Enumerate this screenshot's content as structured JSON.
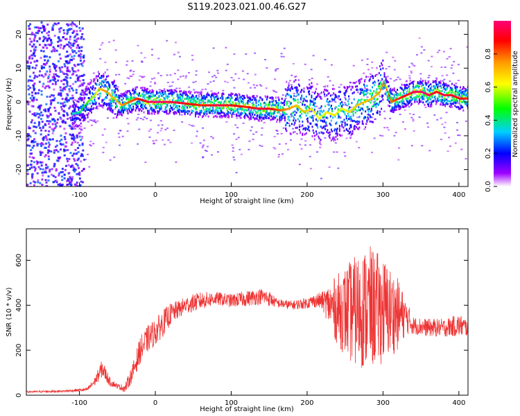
{
  "title": "S119.2023.021.00.46.G27",
  "chart_data": [
    {
      "type": "heatmap",
      "xlabel": "Height of straight line (km)",
      "ylabel": "Frequency (Hz)",
      "xlim": [
        -170,
        412
      ],
      "ylim": [
        -25,
        24
      ],
      "xticks": [
        -100,
        0,
        100,
        200,
        300,
        400
      ],
      "yticks": [
        -20,
        -10,
        0,
        10,
        20
      ],
      "colorbar": {
        "label": "Normalized spectral amplitude",
        "ticks": [
          0.0,
          0.2,
          0.4,
          0.6,
          0.8
        ],
        "range": [
          0,
          1
        ]
      },
      "ridge": {
        "x": [
          -120,
          -100,
          -90,
          -80,
          -75,
          -65,
          -55,
          -45,
          -35,
          -25,
          -10,
          0,
          20,
          40,
          60,
          80,
          100,
          120,
          135,
          150,
          165,
          175,
          185,
          195,
          205,
          215,
          225,
          235,
          245,
          255,
          265,
          275,
          285,
          295,
          300,
          310,
          320,
          330,
          340,
          350,
          360,
          370,
          380,
          390,
          400,
          410
        ],
        "y": [
          -4,
          -3,
          0,
          2,
          4,
          3,
          1,
          -1,
          0,
          1,
          0,
          0,
          0,
          -0.5,
          -1,
          -1,
          -1,
          -1.5,
          -2,
          -2,
          -2.5,
          -2,
          -1,
          -3,
          -2,
          -5,
          -3,
          -4,
          -2,
          -3,
          -1,
          0,
          1,
          3,
          6,
          0,
          1,
          2,
          3,
          3,
          2,
          3,
          2,
          2,
          1,
          1
        ],
        "peak_amplitude": [
          0.3,
          0.4,
          0.5,
          0.6,
          0.7,
          0.75,
          0.7,
          0.75,
          0.8,
          0.85,
          0.95,
          1.0,
          0.95,
          0.9,
          0.85,
          0.95,
          0.9,
          0.85,
          0.95,
          0.9,
          0.8,
          0.75,
          0.7,
          0.7,
          0.65,
          0.6,
          0.65,
          0.65,
          0.6,
          0.65,
          0.7,
          0.7,
          0.7,
          0.75,
          0.8,
          0.8,
          0.85,
          0.9,
          0.95,
          1.0,
          0.95,
          0.9,
          0.95,
          0.9,
          0.9,
          0.85
        ]
      }
    },
    {
      "type": "line",
      "xlabel": "Height of straight line (km)",
      "ylabel": "SNR (10 * v/v)",
      "xlim": [
        -170,
        412
      ],
      "ylim": [
        0,
        740
      ],
      "xticks": [
        -100,
        0,
        100,
        200,
        300,
        400
      ],
      "yticks": [
        0,
        200,
        400,
        600
      ],
      "line_color": "#ee3333",
      "envelope": {
        "x": [
          -170,
          -120,
          -90,
          -80,
          -70,
          -60,
          -50,
          -40,
          -30,
          -20,
          -10,
          0,
          10,
          20,
          30,
          40,
          50,
          60,
          80,
          100,
          120,
          140,
          150,
          160,
          180,
          200,
          210,
          220,
          240,
          260,
          280,
          300,
          320,
          330,
          340,
          360,
          380,
          400,
          412
        ],
        "center": [
          15,
          18,
          25,
          60,
          120,
          60,
          40,
          30,
          100,
          200,
          250,
          280,
          320,
          360,
          380,
          400,
          410,
          420,
          430,
          420,
          430,
          440,
          430,
          410,
          400,
          410,
          420,
          420,
          380,
          370,
          390,
          380,
          360,
          350,
          310,
          300,
          300,
          310,
          300
        ],
        "spread": [
          4,
          5,
          8,
          20,
          40,
          20,
          10,
          20,
          40,
          60,
          60,
          60,
          60,
          50,
          40,
          40,
          40,
          40,
          30,
          30,
          35,
          35,
          35,
          20,
          20,
          25,
          30,
          40,
          160,
          240,
          280,
          240,
          160,
          80,
          40,
          40,
          40,
          50,
          40
        ]
      }
    }
  ]
}
